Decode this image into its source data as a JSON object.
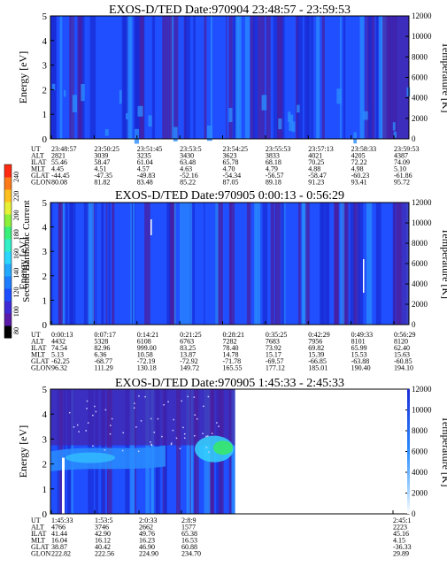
{
  "colors": {
    "background_blue": "#1f4fff",
    "dark_blue": "#1a2bd6",
    "purple": "#4a1fa0",
    "light_blue": "#2a8cff",
    "cyan": "#35d3ff",
    "green": "#37e86a"
  },
  "colorbar": {
    "label": "Second Harmonic Current",
    "ticks": [
      "240",
      "220",
      "200",
      "180",
      "160",
      "140",
      "120",
      "100",
      "80"
    ],
    "range": [
      80,
      240
    ],
    "colors": [
      "#000000",
      "#5a1aa8",
      "#3e2bd6",
      "#1d4fff",
      "#1f7dff",
      "#22a8ff",
      "#2bd6ff",
      "#33f0c8",
      "#39f07a",
      "#8cf03a",
      "#e6f035",
      "#ffc020",
      "#ff7a18",
      "#ff2a10"
    ]
  },
  "chart_data": [
    {
      "type": "heatmap",
      "title": "EXOS-D/TED   Date:970904   23:48:57 - 23:59:53",
      "ylabel": "Energy [eV]",
      "ylabel_right": "Temperature [K]",
      "ylim": [
        0,
        5
      ],
      "yticks": [
        "0",
        "1",
        "2",
        "3",
        "4",
        "5"
      ],
      "ylim_right": [
        0,
        12000
      ],
      "yticks_right": [
        "0",
        "2000",
        "4000",
        "6000",
        "8000",
        "10000",
        "12000"
      ],
      "row_labels": [
        "UT",
        "ALT",
        "ILAT",
        "MLT",
        "GLAT",
        "GLON"
      ],
      "columns": [
        [
          "23:48:57",
          "2821",
          "55.46",
          "4.45",
          "-44.45",
          "80.08"
        ],
        [
          "23:50:25",
          "3039",
          "58.47",
          "4.51",
          "-47.35",
          "81.82"
        ],
        [
          "23:51:45",
          "3235",
          "61.04",
          "4.57",
          "-49.83",
          "83.48"
        ],
        [
          "23:53:5",
          "3430",
          "63.48",
          "4.63",
          "-52.16",
          "85.22"
        ],
        [
          "23:54:25",
          "3623",
          "65.78",
          "4.70",
          "-54.34",
          "87.05"
        ],
        [
          "23:55:53",
          "3833",
          "68.18",
          "4.79",
          "-56.57",
          "89.18"
        ],
        [
          "23:57:13",
          "4021",
          "70.25",
          "4.88",
          "-58.47",
          "91.23"
        ],
        [
          "23:58:33",
          "4205",
          "72.22",
          "4.98",
          "-60.23",
          "93.41"
        ],
        [
          "23:59:53",
          "4387",
          "74.09",
          "5.10",
          "-61.86",
          "95.72"
        ]
      ]
    },
    {
      "type": "heatmap",
      "title": "EXOS-D/TED   Date:970905   0:00:13 - 0:56:29",
      "ylabel": "Energy [eV]",
      "ylabel_right": "Temperature [K]",
      "ylim": [
        0,
        5
      ],
      "yticks": [
        "0",
        "1",
        "2",
        "3",
        "4",
        "5"
      ],
      "ylim_right": [
        0,
        12000
      ],
      "yticks_right": [
        "0",
        "2000",
        "4000",
        "6000",
        "8000",
        "10000",
        "12000"
      ],
      "row_labels": [
        "UT",
        "ALT",
        "ILAT",
        "MLT",
        "GLAT",
        "GLON"
      ],
      "columns": [
        [
          "0:00:13",
          "4432",
          "74.54",
          "5.13",
          "-62.25",
          "96.32"
        ],
        [
          "0:07:17",
          "5328",
          "82.96",
          "6.36",
          "-68.77",
          "111.29"
        ],
        [
          "0:14:21",
          "6108",
          "999.00",
          "10.58",
          "-72.19",
          "130.18"
        ],
        [
          "0:21:25",
          "6763",
          "83.25",
          "13.87",
          "-72.92",
          "149.72"
        ],
        [
          "0:28:21",
          "7282",
          "78.40",
          "14.78",
          "-71.78",
          "165.55"
        ],
        [
          "0:35:25",
          "7683",
          "73.92",
          "15.17",
          "-69.57",
          "177.12"
        ],
        [
          "0:42:29",
          "7956",
          "69.82",
          "15.39",
          "-66.85",
          "185.01"
        ],
        [
          "0:49:33",
          "8101",
          "65.99",
          "15.53",
          "-63.88",
          "190.40"
        ],
        [
          "0:56:29",
          "8120",
          "62.40",
          "15.63",
          "-60.85",
          "194.10"
        ]
      ]
    },
    {
      "type": "heatmap",
      "title": "EXOS-D/TED   Date:970905   1:45:33 - 2:45:33",
      "ylabel": "Energy [eV]",
      "ylabel_right": "Temperature [K]",
      "ylim": [
        0,
        5
      ],
      "yticks": [
        "0",
        "1",
        "2",
        "3",
        "4",
        "5"
      ],
      "ylim_right": [
        0,
        12000
      ],
      "yticks_right": [
        "0",
        "2000",
        "4000",
        "6000",
        "8000",
        "10000",
        "12000"
      ],
      "row_labels": [
        "UT",
        "ALT",
        "ILAT",
        "MLT",
        "GLAT",
        "GLON"
      ],
      "columns": [
        [
          "1:45:33",
          "4766",
          "41.44",
          "16.04",
          "38.87",
          "222.82"
        ],
        [
          "1:53:5",
          "3746",
          "42.90",
          "16.12",
          "40.42",
          "222.56"
        ],
        [
          "2:0:33",
          "2662",
          "49.76",
          "16.23",
          "46.90",
          "224.90"
        ],
        [
          "2:8:9",
          "1577",
          "65.38",
          "16.53",
          "60.88",
          "234.70"
        ],
        [
          "2:45:1",
          "2223",
          "45.16",
          "4.15",
          "-36.33",
          "29.89"
        ]
      ]
    }
  ]
}
